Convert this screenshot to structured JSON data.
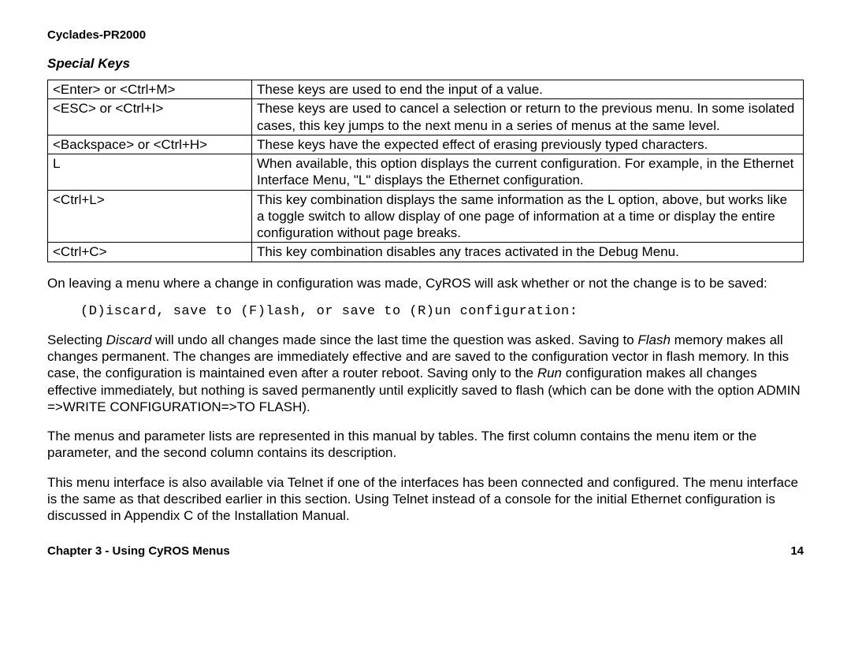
{
  "header": {
    "product": "Cyclades-PR2000"
  },
  "section_title": "Special Keys",
  "table": {
    "rows": [
      {
        "key": "<Enter> or <Ctrl+M>",
        "desc": "These keys are used to end the input of a value."
      },
      {
        "key": "<ESC> or  <Ctrl+I>",
        "desc": "These keys are used to cancel a selection or return to the previous menu.  In some isolated cases, this key jumps to the next menu in a series of menus at the same level."
      },
      {
        "key": "<Backspace> or <Ctrl+H>",
        "desc": "These keys have the expected effect of erasing previously typed characters."
      },
      {
        "key": "L",
        "desc": "When available, this option displays the current configuration.  For example, in the Ethernet Interface Menu, \"L\" displays the Ethernet configuration."
      },
      {
        "key": "<Ctrl+L>",
        "desc": "This key combination displays the same information as the L option, above, but works like a toggle switch to allow display of one page of information at a time or display the entire configuration without page breaks."
      },
      {
        "key": "<Ctrl+C>",
        "desc": "This key combination disables any traces activated in the Debug Menu."
      }
    ]
  },
  "para1": "On leaving a menu where a change in configuration was made, CyROS will ask whether or not the change is to be saved:",
  "prompt": "(D)iscard, save to (F)lash, or save to (R)un configuration:",
  "para2": {
    "pre1": "Selecting ",
    "ital1": "Discard",
    "mid1": " will undo all changes made since the last time the question was asked.  Saving to ",
    "ital2": "Flash",
    "mid2": " memory makes all changes permanent.  The changes are immediately effective and are saved to the configuration vector in flash memory.  In this case, the configuration is maintained even after a router reboot.  Saving only to the ",
    "ital3": "Run",
    "post": " configuration makes all changes effective immediately, but nothing is saved permanently until explicitly saved to flash (which can be done with the option ADMIN =>WRITE CONFIGURATION=>TO FLASH)."
  },
  "para3": "The menus and parameter lists are represented in this manual by tables.  The first column contains the menu item or the parameter, and the second column contains its description.",
  "para4": "This menu interface is also available via Telnet if one of the interfaces has been connected and configured.  The menu interface is the same as that described earlier in this section.  Using Telnet instead of a console for the initial Ethernet configuration is discussed in Appendix C of the Installation Manual.",
  "footer": {
    "chapter": "Chapter 3 - Using CyROS Menus",
    "page": "14"
  }
}
